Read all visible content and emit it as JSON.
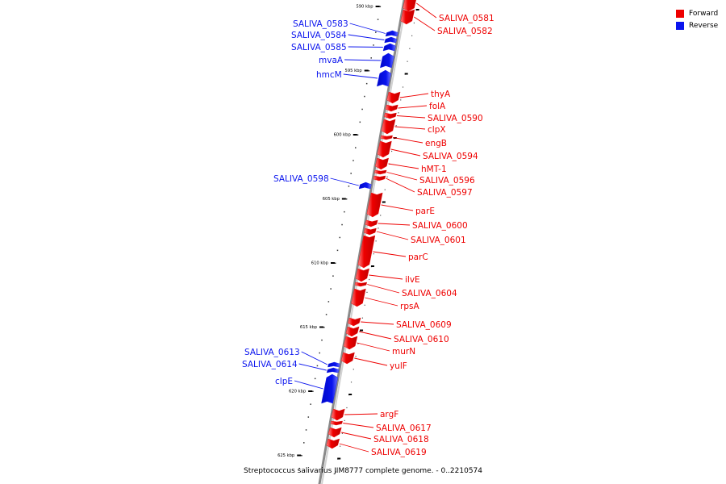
{
  "colors": {
    "forward": "#ee0000",
    "reverse": "#0a14ee",
    "backbone": "#8a8a8a"
  },
  "legend": [
    {
      "label": "Forward",
      "color": "#ee0000"
    },
    {
      "label": "Reverse",
      "color": "#0a14ee"
    }
  ],
  "axis_ticks": [
    "590 kbp",
    "595 kbp",
    "600 kbp",
    "605 kbp",
    "610 kbp",
    "615 kbp",
    "620 kbp",
    "625 kbp"
  ],
  "genes": [
    {
      "name": "SALIVA_0581",
      "strand": "forward"
    },
    {
      "name": "SALIVA_0582",
      "strand": "forward"
    },
    {
      "name": "SALIVA_0583",
      "strand": "reverse"
    },
    {
      "name": "SALIVA_0584",
      "strand": "reverse"
    },
    {
      "name": "SALIVA_0585",
      "strand": "reverse"
    },
    {
      "name": "mvaA",
      "strand": "reverse"
    },
    {
      "name": "hmcM",
      "strand": "reverse"
    },
    {
      "name": "thyA",
      "strand": "forward"
    },
    {
      "name": "folA",
      "strand": "forward"
    },
    {
      "name": "SALIVA_0590",
      "strand": "forward"
    },
    {
      "name": "clpX",
      "strand": "forward"
    },
    {
      "name": "engB",
      "strand": "forward"
    },
    {
      "name": "SALIVA_0594",
      "strand": "forward"
    },
    {
      "name": "hMT-1",
      "strand": "forward"
    },
    {
      "name": "SALIVA_0596",
      "strand": "forward"
    },
    {
      "name": "SALIVA_0597",
      "strand": "forward"
    },
    {
      "name": "SALIVA_0598",
      "strand": "reverse"
    },
    {
      "name": "parE",
      "strand": "forward"
    },
    {
      "name": "SALIVA_0600",
      "strand": "forward"
    },
    {
      "name": "SALIVA_0601",
      "strand": "forward"
    },
    {
      "name": "parC",
      "strand": "forward"
    },
    {
      "name": "ilvE",
      "strand": "forward"
    },
    {
      "name": "SALIVA_0604",
      "strand": "forward"
    },
    {
      "name": "rpsA",
      "strand": "forward"
    },
    {
      "name": "SALIVA_0609",
      "strand": "forward"
    },
    {
      "name": "SALIVA_0610",
      "strand": "forward"
    },
    {
      "name": "murN",
      "strand": "forward"
    },
    {
      "name": "yulF",
      "strand": "forward"
    },
    {
      "name": "SALIVA_0613",
      "strand": "reverse"
    },
    {
      "name": "SALIVA_0614",
      "strand": "reverse"
    },
    {
      "name": "clpE",
      "strand": "reverse"
    },
    {
      "name": "argF",
      "strand": "forward"
    },
    {
      "name": "SALIVA_0617",
      "strand": "forward"
    },
    {
      "name": "SALIVA_0618",
      "strand": "forward"
    },
    {
      "name": "SALIVA_0619",
      "strand": "forward"
    }
  ],
  "footer": {
    "title": "Streptococcus salivarius JIM8777 complete genome. - 0..2210574"
  }
}
